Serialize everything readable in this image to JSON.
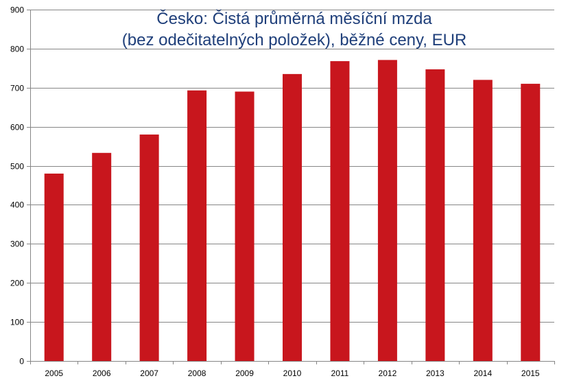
{
  "chart_data": {
    "type": "bar",
    "title": "Česko: Čistá průměrná měsíční mzda",
    "subtitle": "(bez odečitatelných položek), běžné ceny, EUR",
    "xlabel": "",
    "ylabel": "",
    "categories": [
      "2005",
      "2006",
      "2007",
      "2008",
      "2009",
      "2010",
      "2011",
      "2012",
      "2013",
      "2014",
      "2015"
    ],
    "values": [
      480,
      533,
      580,
      693,
      690,
      735,
      768,
      771,
      747,
      720,
      710
    ],
    "ylim": [
      0,
      900
    ],
    "yticks": [
      "0",
      "100",
      "200",
      "300",
      "400",
      "500",
      "600",
      "700",
      "800",
      "900"
    ],
    "grid": true,
    "legend": "none",
    "bar_color": "#c8161d",
    "title_color": "#1f3f7a"
  }
}
